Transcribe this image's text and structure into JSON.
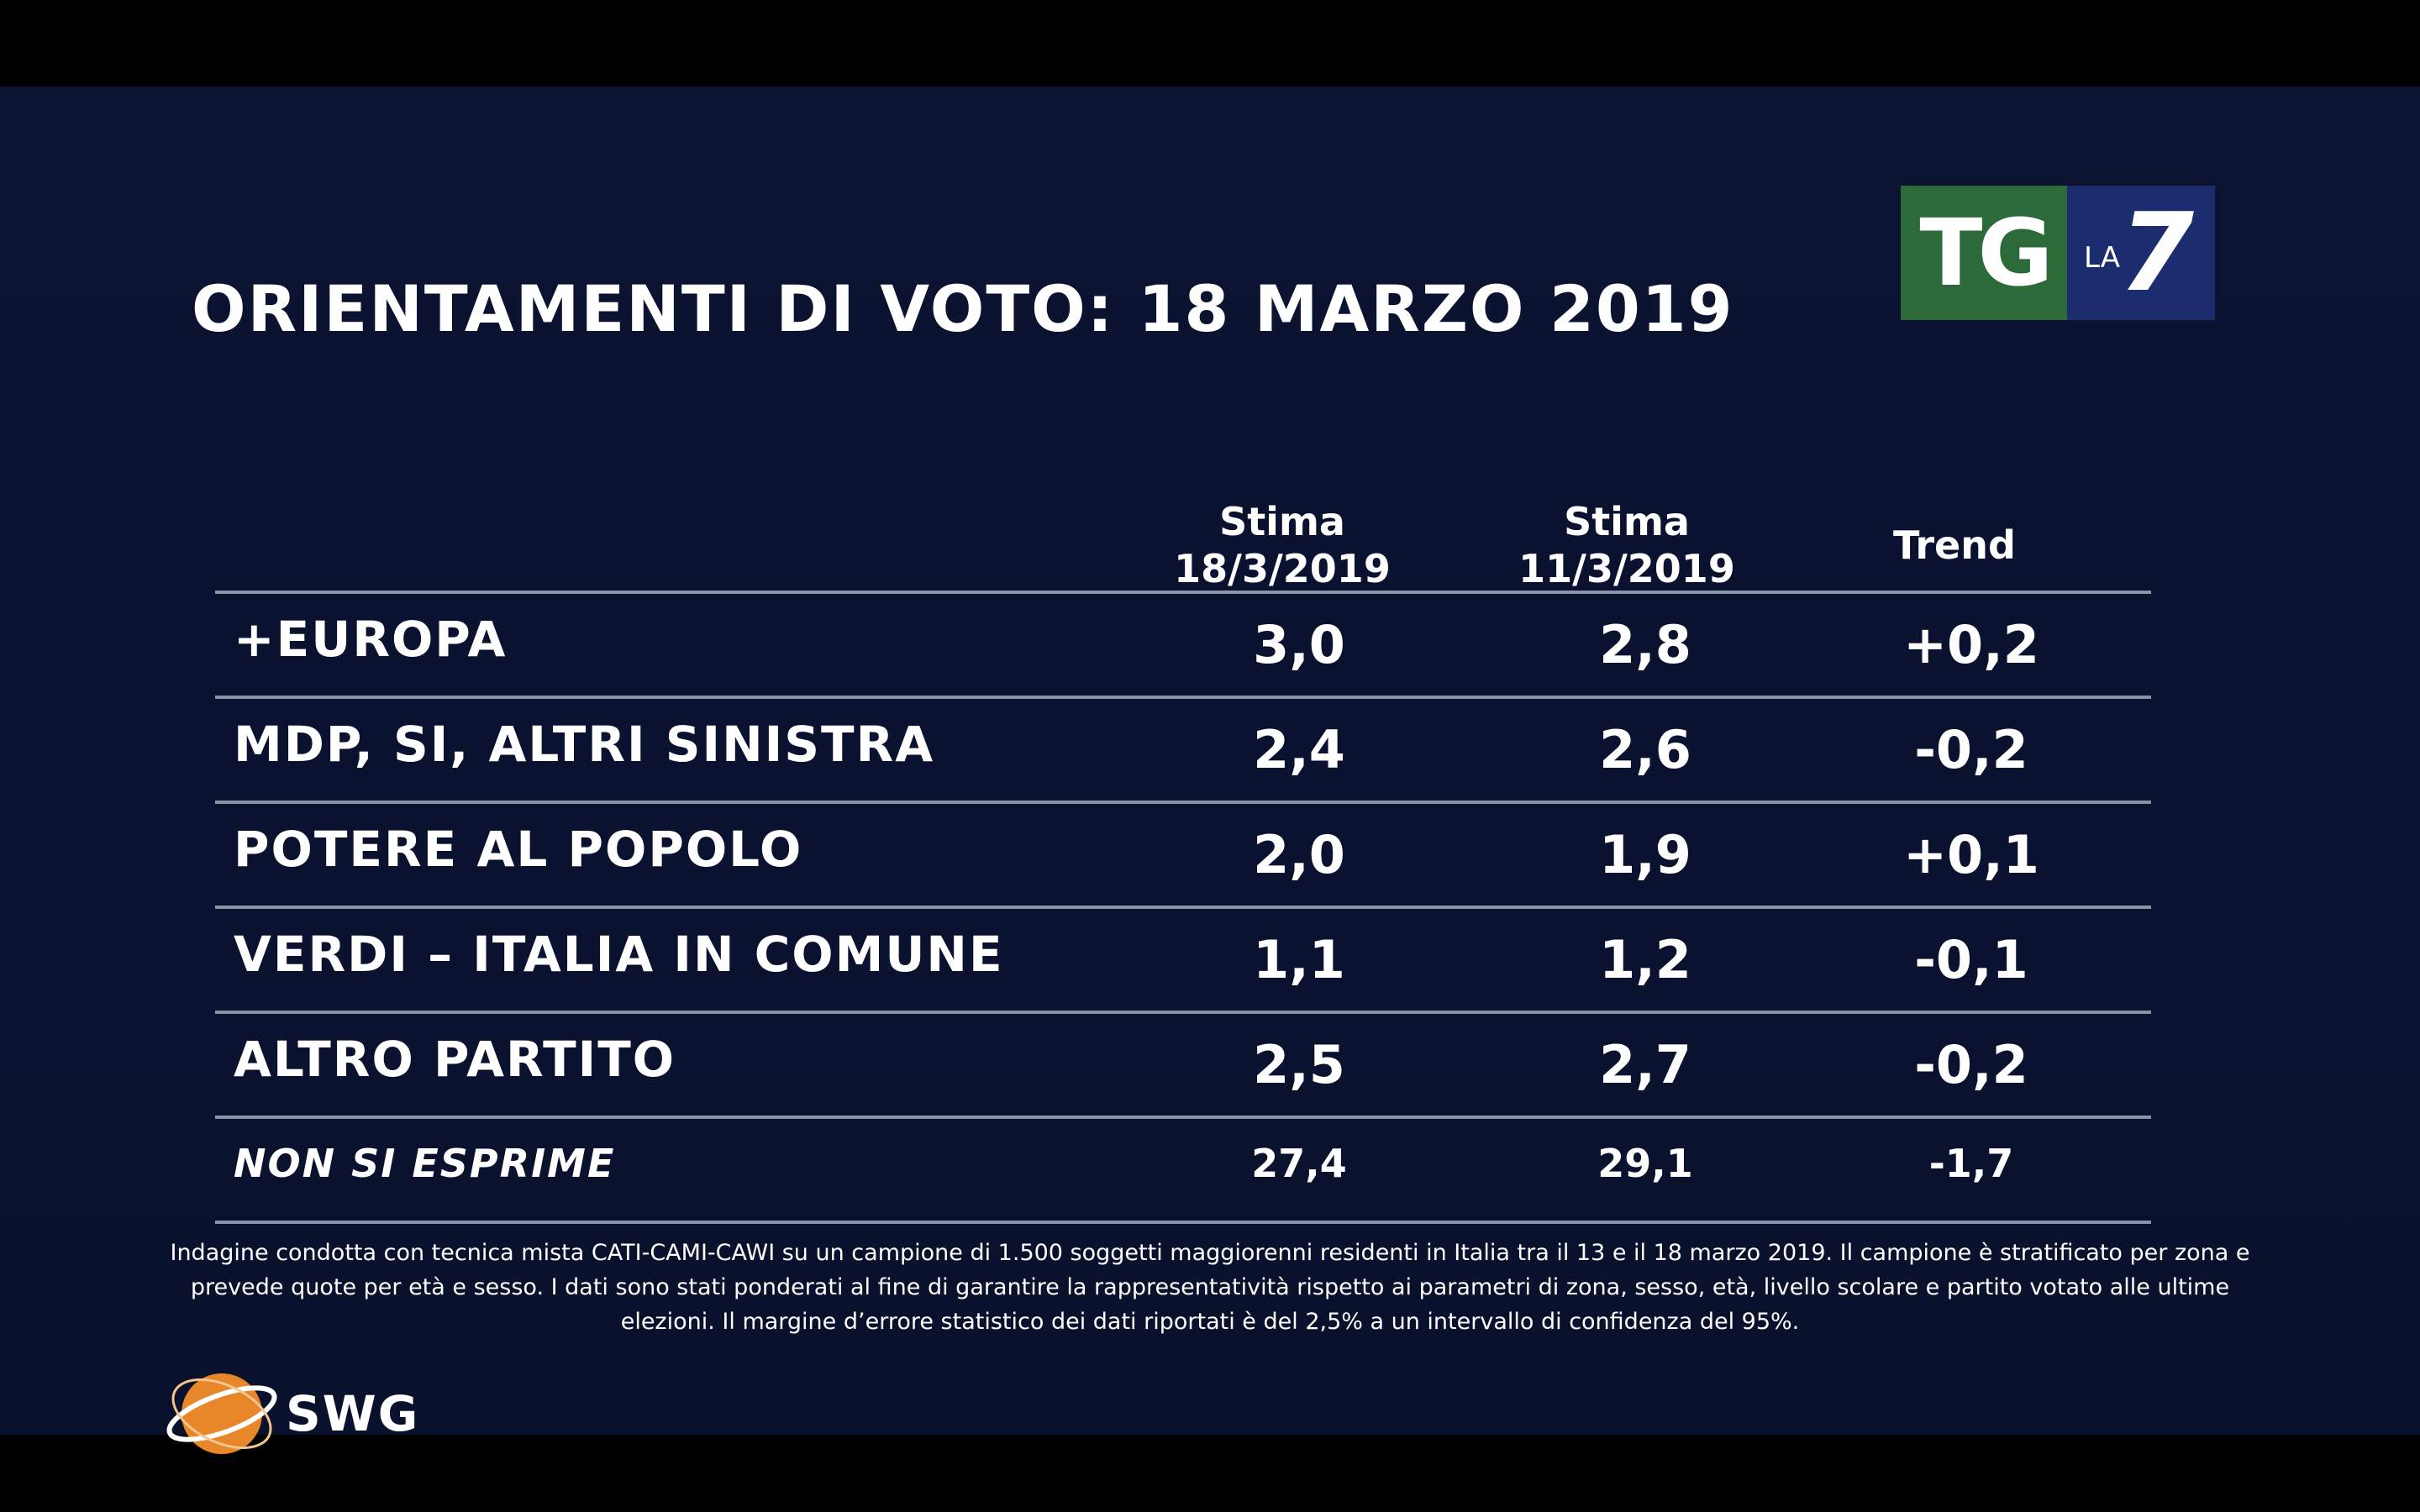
{
  "title": "ORIENTAMENTI DI VOTO: 18 MARZO 2019",
  "logo": {
    "tg": "TG",
    "la": "LA",
    "seven": "7"
  },
  "chart_data": {
    "type": "table",
    "title": "ORIENTAMENTI DI VOTO: 18 MARZO 2019",
    "columns": [
      {
        "line1": "Stima",
        "line2": "18/3/2019"
      },
      {
        "line1": "Stima",
        "line2": "11/3/2019"
      },
      {
        "line1": "",
        "line2": "Trend"
      }
    ],
    "rows": [
      {
        "label": "+EUROPA",
        "values": [
          "3,0",
          "2,8",
          "+0,2"
        ]
      },
      {
        "label": "MDP, SI, ALTRI SINISTRA",
        "values": [
          "2,4",
          "2,6",
          "-0,2"
        ]
      },
      {
        "label": "POTERE AL POPOLO",
        "values": [
          "2,0",
          "1,9",
          "+0,1"
        ]
      },
      {
        "label": "VERDI – ITALIA IN COMUNE",
        "values": [
          "1,1",
          "1,2",
          "-0,1"
        ]
      },
      {
        "label": "ALTRO PARTITO",
        "values": [
          "2,5",
          "2,7",
          "-0,2"
        ]
      },
      {
        "label": "NON SI ESPRIME",
        "values": [
          "27,4",
          "29,1",
          "-1,7"
        ]
      }
    ]
  },
  "footnote": "Indagine condotta con tecnica mista CATI-CAMI-CAWI su un campione di 1.500 soggetti maggiorenni residenti in Italia tra il 13 e il 18 marzo 2019. Il campione è stratificato per zona e prevede quote per età e sesso. I dati sono stati ponderati al fine di garantire la rappresentatività rispetto ai parametri di zona, sesso, età, livello scolare e partito votato alle ultime elezioni. Il margine d’errore statistico dei dati riportati è del 2,5% a un intervallo di confidenza del 95%.",
  "brand": "SWG",
  "colors": {
    "background": "#0b1331",
    "rule": "#8a93a8",
    "tg_green": "#2d6a3a",
    "la7_blue": "#1b2d6e",
    "swg_orange": "#e8862a"
  }
}
